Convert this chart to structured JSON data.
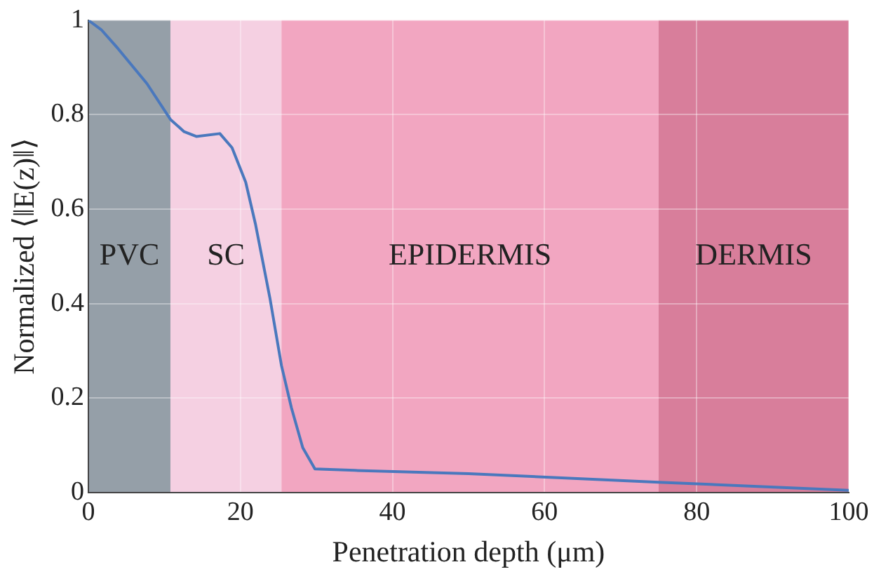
{
  "chart_data": {
    "type": "line",
    "xlabel": "Penetration depth (μm)",
    "ylabel": "Normalized ⟨‖E(z)‖⟩",
    "x": [
      0,
      1.7,
      3.9,
      7.7,
      10.8,
      12.6,
      14.2,
      17.3,
      18.9,
      20.7,
      22.0,
      23.9,
      25.4,
      26.7,
      28.2,
      29.8,
      35,
      50,
      75,
      100
    ],
    "series": [
      {
        "color": "#4a78bd",
        "values": [
          1,
          0.98,
          0.94,
          0.866,
          0.79,
          0.764,
          0.754,
          0.76,
          0.73,
          0.657,
          0.567,
          0.41,
          0.269,
          0.18,
          0.095,
          0.05,
          0.047,
          0.04,
          0.022,
          0.005
        ]
      }
    ],
    "xlim": [
      0,
      100
    ],
    "xticks": [
      0,
      20,
      40,
      60,
      80,
      100
    ],
    "ylim": [
      0,
      1
    ],
    "yticks": [
      0,
      0.2,
      0.4,
      0.6,
      0.8,
      1
    ],
    "bands": [
      {
        "axis": "x",
        "from": 0,
        "to": 10.8,
        "label": "PVC",
        "color": "#959fa8"
      },
      {
        "axis": "x",
        "from": 10.8,
        "to": 25.4,
        "label": "SC",
        "color": "#f5d0e2"
      },
      {
        "axis": "x",
        "from": 25.4,
        "to": 75,
        "label": "EPIDERMIS",
        "color": "#f2a6c1"
      },
      {
        "axis": "x",
        "from": 75,
        "to": 100,
        "label": "DERMIS",
        "color": "#d87e9b"
      }
    ],
    "grid": true,
    "legend": false,
    "marker": "none",
    "line_style": "solid"
  }
}
